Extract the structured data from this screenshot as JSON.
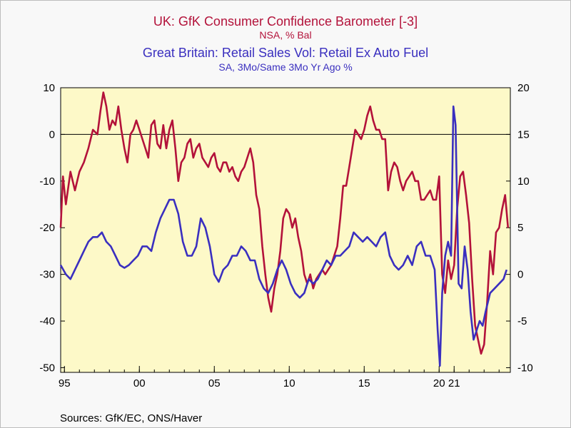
{
  "colors": {
    "series1": "#b3123a",
    "series2": "#3a2fbf",
    "plot_bg": "#fdf9c8",
    "page_bg": "#f8f8f8"
  },
  "source": "Sources:  GfK/EC, ONS/Haver",
  "chart_data": {
    "type": "line",
    "title_lines": [
      {
        "text": "UK: GfK Consumer Confidence Barometer [-3]",
        "series": 0
      },
      {
        "text": "NSA, % Bal",
        "series": 0
      },
      {
        "text": "Great Britain: Retail Sales Vol: Retail Ex Auto Fuel",
        "series": 1
      },
      {
        "text": "SA, 3Mo/Same 3Mo Yr Ago %",
        "series": 1
      }
    ],
    "x_range": [
      1994.75,
      2024.75
    ],
    "x_ticks": [
      {
        "year": 1995,
        "label": "95"
      },
      {
        "year": 2000,
        "label": "00"
      },
      {
        "year": 2005,
        "label": "05"
      },
      {
        "year": 2010,
        "label": "10"
      },
      {
        "year": 2015,
        "label": "15"
      },
      {
        "year": 2020,
        "label": "20"
      },
      {
        "year": 2021,
        "label": "21"
      }
    ],
    "y_left": {
      "range": [
        -51,
        10
      ],
      "ticks": [
        10,
        0,
        -10,
        -20,
        -30,
        -40,
        -50
      ]
    },
    "y_right": {
      "range": [
        -10.5,
        20
      ],
      "ticks": [
        20,
        15,
        10,
        5,
        0,
        -5,
        -10
      ]
    },
    "zero_line": 0,
    "series": [
      {
        "name": "UK: GfK Consumer Confidence Barometer [-3]",
        "axis": "left",
        "points": [
          [
            1994.75,
            -20
          ],
          [
            1994.9,
            -9
          ],
          [
            1995.1,
            -15
          ],
          [
            1995.4,
            -8
          ],
          [
            1995.7,
            -12
          ],
          [
            1996.0,
            -8
          ],
          [
            1996.3,
            -6
          ],
          [
            1996.6,
            -3
          ],
          [
            1996.9,
            1
          ],
          [
            1997.2,
            0
          ],
          [
            1997.4,
            5
          ],
          [
            1997.6,
            9
          ],
          [
            1997.8,
            6
          ],
          [
            1998.0,
            1
          ],
          [
            1998.2,
            3
          ],
          [
            1998.4,
            2
          ],
          [
            1998.6,
            6
          ],
          [
            1998.8,
            1
          ],
          [
            1999.0,
            -3
          ],
          [
            1999.2,
            -6
          ],
          [
            1999.4,
            0
          ],
          [
            1999.6,
            1
          ],
          [
            1999.8,
            3
          ],
          [
            2000.0,
            1
          ],
          [
            2000.2,
            -1
          ],
          [
            2000.4,
            -3
          ],
          [
            2000.6,
            -5
          ],
          [
            2000.8,
            2
          ],
          [
            2001.0,
            3
          ],
          [
            2001.2,
            -2
          ],
          [
            2001.4,
            -3
          ],
          [
            2001.6,
            2
          ],
          [
            2001.8,
            -3
          ],
          [
            2002.0,
            1
          ],
          [
            2002.2,
            3
          ],
          [
            2002.4,
            -3
          ],
          [
            2002.6,
            -10
          ],
          [
            2002.8,
            -6
          ],
          [
            2003.0,
            -5
          ],
          [
            2003.2,
            -2
          ],
          [
            2003.4,
            -1
          ],
          [
            2003.6,
            -5
          ],
          [
            2003.8,
            -3
          ],
          [
            2004.0,
            -2
          ],
          [
            2004.2,
            -5
          ],
          [
            2004.4,
            -6
          ],
          [
            2004.6,
            -7
          ],
          [
            2004.8,
            -5
          ],
          [
            2005.0,
            -4
          ],
          [
            2005.2,
            -7
          ],
          [
            2005.4,
            -8
          ],
          [
            2005.6,
            -6
          ],
          [
            2005.8,
            -6
          ],
          [
            2006.0,
            -8
          ],
          [
            2006.2,
            -7
          ],
          [
            2006.4,
            -9
          ],
          [
            2006.6,
            -10
          ],
          [
            2006.8,
            -8
          ],
          [
            2007.0,
            -7
          ],
          [
            2007.2,
            -5
          ],
          [
            2007.4,
            -3
          ],
          [
            2007.6,
            -6
          ],
          [
            2007.8,
            -13
          ],
          [
            2008.0,
            -16
          ],
          [
            2008.2,
            -24
          ],
          [
            2008.4,
            -30
          ],
          [
            2008.6,
            -35
          ],
          [
            2008.8,
            -38
          ],
          [
            2009.0,
            -33
          ],
          [
            2009.2,
            -30
          ],
          [
            2009.4,
            -25
          ],
          [
            2009.6,
            -18
          ],
          [
            2009.8,
            -16
          ],
          [
            2010.0,
            -17
          ],
          [
            2010.2,
            -20
          ],
          [
            2010.4,
            -18
          ],
          [
            2010.6,
            -22
          ],
          [
            2010.8,
            -25
          ],
          [
            2011.0,
            -30
          ],
          [
            2011.2,
            -32
          ],
          [
            2011.4,
            -30
          ],
          [
            2011.6,
            -33
          ],
          [
            2011.8,
            -31
          ],
          [
            2012.0,
            -30
          ],
          [
            2012.2,
            -29
          ],
          [
            2012.4,
            -30
          ],
          [
            2012.6,
            -29
          ],
          [
            2012.8,
            -28
          ],
          [
            2013.0,
            -26
          ],
          [
            2013.2,
            -24
          ],
          [
            2013.4,
            -18
          ],
          [
            2013.6,
            -11
          ],
          [
            2013.8,
            -11
          ],
          [
            2014.0,
            -7
          ],
          [
            2014.2,
            -3
          ],
          [
            2014.4,
            1
          ],
          [
            2014.6,
            0
          ],
          [
            2014.8,
            -1
          ],
          [
            2015.0,
            1
          ],
          [
            2015.2,
            4
          ],
          [
            2015.4,
            6
          ],
          [
            2015.6,
            3
          ],
          [
            2015.8,
            1
          ],
          [
            2016.0,
            1
          ],
          [
            2016.2,
            -1
          ],
          [
            2016.4,
            -1
          ],
          [
            2016.6,
            -12
          ],
          [
            2016.8,
            -8
          ],
          [
            2017.0,
            -6
          ],
          [
            2017.2,
            -7
          ],
          [
            2017.4,
            -10
          ],
          [
            2017.6,
            -12
          ],
          [
            2017.8,
            -10
          ],
          [
            2018.0,
            -9
          ],
          [
            2018.2,
            -8
          ],
          [
            2018.4,
            -10
          ],
          [
            2018.6,
            -10
          ],
          [
            2018.8,
            -14
          ],
          [
            2019.0,
            -14
          ],
          [
            2019.2,
            -13
          ],
          [
            2019.4,
            -12
          ],
          [
            2019.6,
            -14
          ],
          [
            2019.8,
            -14
          ],
          [
            2020.0,
            -9
          ],
          [
            2020.2,
            -30
          ],
          [
            2020.4,
            -34
          ],
          [
            2020.6,
            -27
          ],
          [
            2020.8,
            -31
          ],
          [
            2021.0,
            -28
          ],
          [
            2021.2,
            -16
          ],
          [
            2021.4,
            -9
          ],
          [
            2021.6,
            -8
          ],
          [
            2021.8,
            -13
          ],
          [
            2022.0,
            -19
          ],
          [
            2022.2,
            -31
          ],
          [
            2022.4,
            -41
          ],
          [
            2022.6,
            -44
          ],
          [
            2022.8,
            -47
          ],
          [
            2023.0,
            -45
          ],
          [
            2023.2,
            -36
          ],
          [
            2023.4,
            -25
          ],
          [
            2023.6,
            -30
          ],
          [
            2023.8,
            -21
          ],
          [
            2024.0,
            -20
          ],
          [
            2024.2,
            -16
          ],
          [
            2024.4,
            -13
          ],
          [
            2024.6,
            -20
          ]
        ]
      },
      {
        "name": "Great Britain: Retail Sales Vol: Retail Ex Auto Fuel",
        "axis": "right",
        "points": [
          [
            1994.75,
            1
          ],
          [
            1995.1,
            0
          ],
          [
            1995.4,
            -0.5
          ],
          [
            1995.7,
            0.5
          ],
          [
            1996.0,
            1.5
          ],
          [
            1996.3,
            2.5
          ],
          [
            1996.6,
            3.5
          ],
          [
            1996.9,
            4
          ],
          [
            1997.2,
            4
          ],
          [
            1997.5,
            4.5
          ],
          [
            1997.8,
            3.5
          ],
          [
            1998.1,
            3
          ],
          [
            1998.4,
            2
          ],
          [
            1998.7,
            1
          ],
          [
            1999.0,
            0.7
          ],
          [
            1999.3,
            1
          ],
          [
            1999.6,
            1.5
          ],
          [
            1999.9,
            2
          ],
          [
            2000.2,
            3
          ],
          [
            2000.5,
            3
          ],
          [
            2000.8,
            2.5
          ],
          [
            2001.1,
            4.5
          ],
          [
            2001.4,
            6
          ],
          [
            2001.7,
            7
          ],
          [
            2002.0,
            8
          ],
          [
            2002.3,
            8
          ],
          [
            2002.6,
            6.5
          ],
          [
            2002.9,
            3.5
          ],
          [
            2003.2,
            2
          ],
          [
            2003.5,
            2
          ],
          [
            2003.8,
            3
          ],
          [
            2004.1,
            6
          ],
          [
            2004.4,
            5
          ],
          [
            2004.7,
            3
          ],
          [
            2005.0,
            0
          ],
          [
            2005.3,
            -0.8
          ],
          [
            2005.6,
            0.5
          ],
          [
            2005.9,
            1
          ],
          [
            2006.2,
            2
          ],
          [
            2006.5,
            2
          ],
          [
            2006.8,
            3
          ],
          [
            2007.1,
            2.5
          ],
          [
            2007.4,
            1.5
          ],
          [
            2007.7,
            1.5
          ],
          [
            2008.0,
            -0.5
          ],
          [
            2008.3,
            -1.5
          ],
          [
            2008.6,
            -2
          ],
          [
            2008.9,
            -1
          ],
          [
            2009.2,
            0.5
          ],
          [
            2009.5,
            1.5
          ],
          [
            2009.8,
            0.5
          ],
          [
            2010.1,
            -1
          ],
          [
            2010.4,
            -2
          ],
          [
            2010.7,
            -2.5
          ],
          [
            2011.0,
            -2
          ],
          [
            2011.3,
            -0.5
          ],
          [
            2011.6,
            -1
          ],
          [
            2011.9,
            -0.5
          ],
          [
            2012.2,
            0.5
          ],
          [
            2012.5,
            1.5
          ],
          [
            2012.8,
            1
          ],
          [
            2013.1,
            2
          ],
          [
            2013.4,
            2
          ],
          [
            2013.7,
            2.5
          ],
          [
            2014.0,
            3
          ],
          [
            2014.3,
            4.5
          ],
          [
            2014.6,
            4
          ],
          [
            2014.9,
            3.5
          ],
          [
            2015.2,
            4
          ],
          [
            2015.5,
            3.5
          ],
          [
            2015.8,
            3
          ],
          [
            2016.1,
            4
          ],
          [
            2016.4,
            4.5
          ],
          [
            2016.7,
            2
          ],
          [
            2017.0,
            1
          ],
          [
            2017.3,
            0.5
          ],
          [
            2017.6,
            1
          ],
          [
            2017.9,
            2
          ],
          [
            2018.2,
            1
          ],
          [
            2018.5,
            3
          ],
          [
            2018.8,
            3.5
          ],
          [
            2019.1,
            2
          ],
          [
            2019.4,
            2
          ],
          [
            2019.7,
            0.5
          ],
          [
            2019.9,
            -6
          ],
          [
            2020.05,
            -9.8
          ],
          [
            2020.2,
            -2
          ],
          [
            2020.4,
            2
          ],
          [
            2020.6,
            3.5
          ],
          [
            2020.8,
            2
          ],
          [
            2020.95,
            18
          ],
          [
            2021.1,
            16
          ],
          [
            2021.3,
            -1
          ],
          [
            2021.5,
            -1.5
          ],
          [
            2021.7,
            3
          ],
          [
            2021.9,
            0.5
          ],
          [
            2022.1,
            -4
          ],
          [
            2022.3,
            -7
          ],
          [
            2022.5,
            -6
          ],
          [
            2022.7,
            -5
          ],
          [
            2022.9,
            -5.5
          ],
          [
            2023.1,
            -4
          ],
          [
            2023.4,
            -2
          ],
          [
            2023.7,
            -1.5
          ],
          [
            2024.0,
            -1
          ],
          [
            2024.3,
            -0.5
          ],
          [
            2024.5,
            0.5
          ]
        ]
      }
    ]
  }
}
